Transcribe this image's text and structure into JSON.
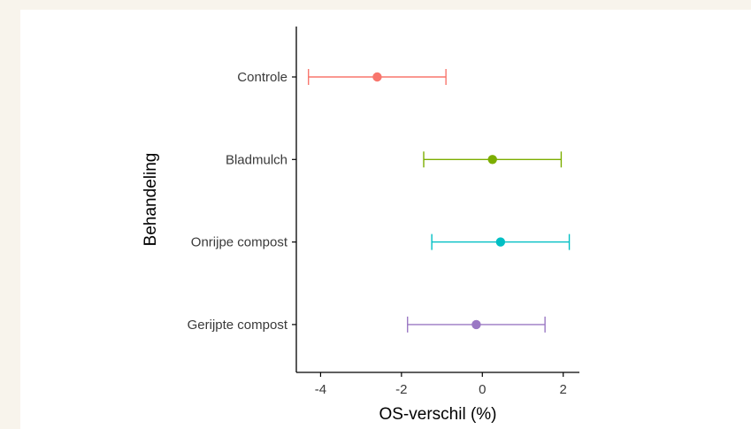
{
  "chart_data": {
    "type": "errorbar",
    "title": "",
    "xlabel": "OS-verschil (%)",
    "ylabel": "Behandeling",
    "xlim": [
      -4.6,
      2.4
    ],
    "xticks": [
      -4,
      -2,
      0,
      2
    ],
    "xtick_labels": [
      "-4",
      "-2",
      "0",
      "2"
    ],
    "grid": false,
    "legend": "none",
    "categories": [
      "Controle",
      "Bladmulch",
      "Onrijpe compost",
      "Gerijpte compost"
    ],
    "series": [
      {
        "category": "Controle",
        "estimate": -2.6,
        "lower": -4.3,
        "upper": -0.9,
        "color": "#f8766d"
      },
      {
        "category": "Bladmulch",
        "estimate": 0.25,
        "lower": -1.45,
        "upper": 1.95,
        "color": "#7cae00"
      },
      {
        "category": "Onrijpe compost",
        "estimate": 0.45,
        "lower": -1.25,
        "upper": 2.15,
        "color": "#00bfc4"
      },
      {
        "category": "Gerijpte compost",
        "estimate": -0.15,
        "lower": -1.85,
        "upper": 1.55,
        "color": "#9a78c4"
      }
    ]
  }
}
